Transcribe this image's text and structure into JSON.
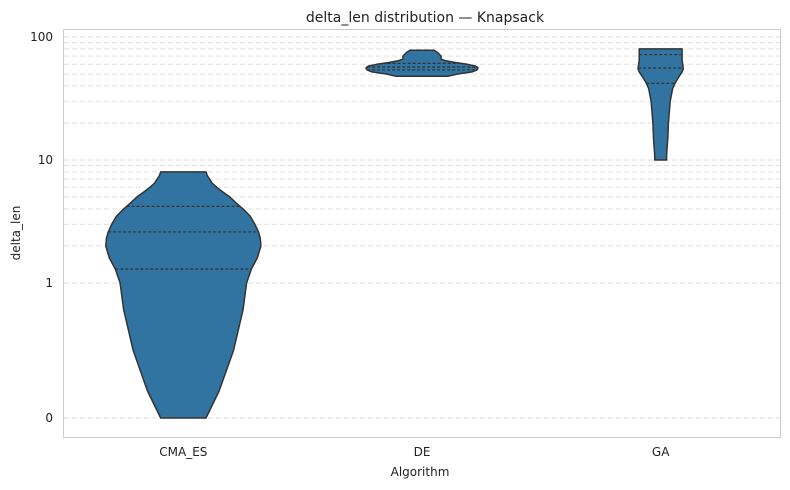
{
  "chart_data": {
    "type": "violin",
    "title": "delta_len distribution — Knapsack",
    "xlabel": "Algorithm",
    "ylabel": "delta_len",
    "yscale": "symlog",
    "ylim": [
      0,
      110
    ],
    "yticks": [
      {
        "value": 0,
        "label": "0"
      },
      {
        "value": 1,
        "label": "1"
      },
      {
        "value": 10,
        "label": "10"
      },
      {
        "value": 100,
        "label": "100"
      }
    ],
    "grid": true,
    "color": "#3274a1",
    "edge_color": "#333333",
    "categories": [
      "CMA_ES",
      "DE",
      "GA"
    ],
    "violins": [
      {
        "category": "CMA_ES",
        "quartiles": [
          1.3,
          2.6,
          4.2
        ],
        "profile": [
          [
            0,
            0.19
          ],
          [
            0.2,
            0.3
          ],
          [
            0.5,
            0.42
          ],
          [
            0.8,
            0.5
          ],
          [
            1.0,
            0.53
          ],
          [
            1.3,
            0.57
          ],
          [
            1.6,
            0.62
          ],
          [
            2.0,
            0.65
          ],
          [
            2.3,
            0.645
          ],
          [
            2.6,
            0.63
          ],
          [
            3.0,
            0.6
          ],
          [
            3.5,
            0.56
          ],
          [
            4.0,
            0.5
          ],
          [
            4.5,
            0.44
          ],
          [
            5.0,
            0.39
          ],
          [
            5.5,
            0.33
          ],
          [
            6.0,
            0.28
          ],
          [
            6.5,
            0.24
          ],
          [
            7.0,
            0.22
          ],
          [
            7.5,
            0.2
          ],
          [
            8.0,
            0.19
          ]
        ]
      },
      {
        "category": "DE",
        "quartiles": [
          54,
          57,
          61
        ],
        "profile": [
          [
            48,
            0.22
          ],
          [
            50,
            0.3
          ],
          [
            52,
            0.42
          ],
          [
            54,
            0.46
          ],
          [
            56,
            0.47
          ],
          [
            58,
            0.45
          ],
          [
            60,
            0.38
          ],
          [
            62,
            0.28
          ],
          [
            64,
            0.2
          ],
          [
            66,
            0.16
          ],
          [
            70,
            0.16
          ],
          [
            75,
            0.13
          ],
          [
            78,
            0.1
          ]
        ]
      },
      {
        "category": "GA",
        "quartiles": [
          42,
          56,
          72
        ],
        "profile": [
          [
            10,
            0.05
          ],
          [
            11,
            0.05
          ],
          [
            15,
            0.06
          ],
          [
            20,
            0.065
          ],
          [
            30,
            0.08
          ],
          [
            38,
            0.1
          ],
          [
            42,
            0.12
          ],
          [
            47,
            0.15
          ],
          [
            52,
            0.18
          ],
          [
            55,
            0.19
          ],
          [
            60,
            0.185
          ],
          [
            65,
            0.18
          ],
          [
            70,
            0.18
          ],
          [
            75,
            0.18
          ],
          [
            80,
            0.18
          ]
        ]
      }
    ]
  }
}
